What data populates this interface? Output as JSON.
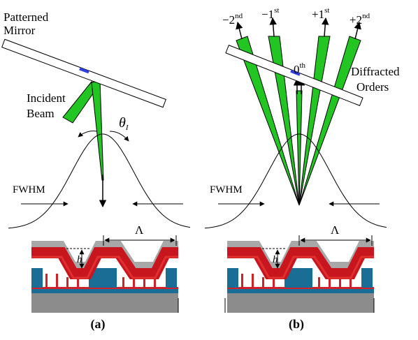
{
  "panel_a": {
    "mirror_label": [
      "Patterned",
      "Mirror"
    ],
    "beam_label": [
      "Incident",
      "Beam"
    ],
    "angle_label": {
      "symbol": "θ",
      "subscript": "I"
    },
    "fwhm_label": "FWHM",
    "period_label": "Λ",
    "height_label": "h",
    "caption": "(a)"
  },
  "panel_b": {
    "orders": [
      {
        "base": "−2",
        "sup": "nd"
      },
      {
        "base": "−1",
        "sup": "st"
      },
      {
        "base": "+1",
        "sup": "st"
      },
      {
        "base": "+2",
        "sup": "nd"
      }
    ],
    "zero_order": {
      "base": "0",
      "sup": "th"
    },
    "diffracted_label": [
      "Diffracted",
      "Orders"
    ],
    "fwhm_label": "FWHM",
    "period_label": "Λ",
    "height_label": "h",
    "caption": "(b)"
  }
}
